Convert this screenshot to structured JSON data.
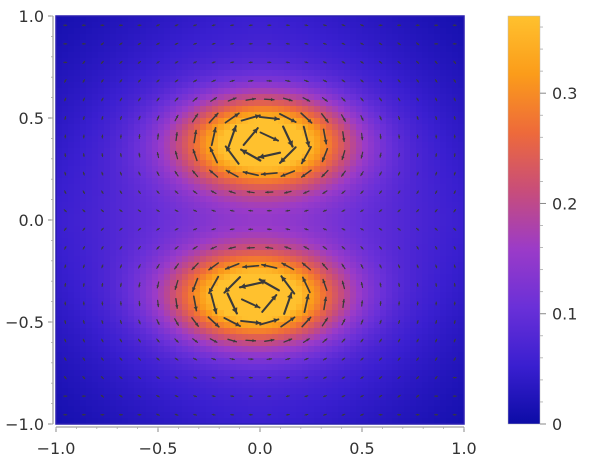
{
  "chart_data": {
    "type": "vector-density",
    "title": "",
    "xlabel": "",
    "ylabel": "",
    "xlim": [
      -1.0,
      1.0
    ],
    "ylim": [
      -1.0,
      1.0
    ],
    "x_ticks": [
      -1.0,
      -0.5,
      0.0,
      0.5,
      1.0
    ],
    "x_tick_labels": [
      "−1.0",
      "−0.5",
      "0.0",
      "0.5",
      "1.0"
    ],
    "y_ticks": [
      -1.0,
      -0.5,
      0.0,
      0.5,
      1.0
    ],
    "y_tick_labels": [
      "−1.0",
      "−0.5",
      "0.0",
      "0.5",
      "1.0"
    ],
    "grid": false,
    "field": {
      "description_of_lobes": [
        {
          "center_x": 0.02,
          "center_y": 0.38,
          "peak_magnitude": 0.37,
          "rotation": "clockwise"
        },
        {
          "center_x": -0.02,
          "center_y": -0.38,
          "peak_magnitude": 0.37,
          "rotation": "counterclockwise"
        }
      ],
      "min_magnitude": 0.0,
      "max_magnitude": 0.37
    },
    "colorbar": {
      "range": [
        0,
        0.37
      ],
      "ticks": [
        0,
        0.1,
        0.2,
        0.3
      ],
      "tick_labels": [
        "0",
        "0.1",
        "0.2",
        "0.3"
      ],
      "colormap": [
        "#0c0ca6",
        "#3a1fd0",
        "#6a30d8",
        "#9b3bc8",
        "#c84d7a",
        "#ee6a3a",
        "#fb9c1a",
        "#ffc12e"
      ]
    },
    "frame_color": "#2a1fb0",
    "arrow_color": "#3a3a3a"
  }
}
